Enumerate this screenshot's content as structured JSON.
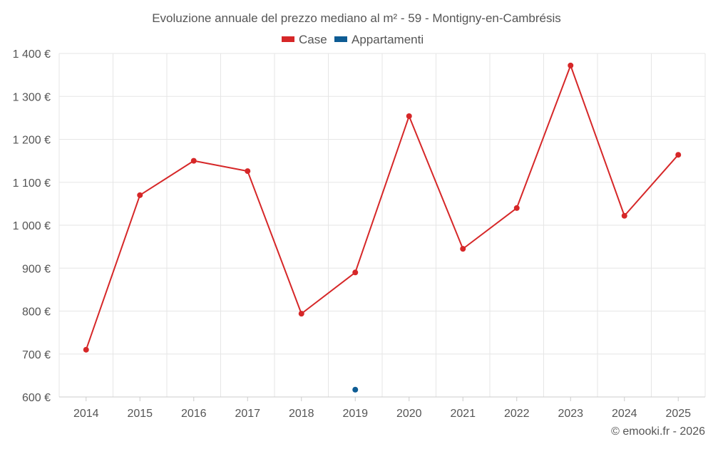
{
  "chart_data": {
    "type": "line",
    "title": "Evoluzione annuale del prezzo mediano al m² - 59 - Montigny-en-Cambrésis",
    "categories": [
      "2014",
      "2015",
      "2016",
      "2017",
      "2018",
      "2019",
      "2020",
      "2021",
      "2022",
      "2023",
      "2024",
      "2025"
    ],
    "series": [
      {
        "name": "Case",
        "color": "#d62728",
        "values": [
          710,
          1070,
          1150,
          1126,
          794,
          890,
          1254,
          945,
          1040,
          1372,
          1022,
          1164
        ]
      },
      {
        "name": "Appartamenti",
        "color": "#0e5c94",
        "values": [
          null,
          null,
          null,
          null,
          null,
          617,
          null,
          null,
          null,
          null,
          null,
          null
        ]
      }
    ],
    "y_ticks": [
      600,
      700,
      800,
      900,
      1000,
      1100,
      1200,
      1300,
      1400
    ],
    "y_tick_labels": [
      "600 €",
      "700 €",
      "800 €",
      "900 €",
      "1 000 €",
      "1 100 €",
      "1 200 €",
      "1 300 €",
      "1 400 €"
    ],
    "ylim": [
      600,
      1400
    ],
    "xlabel": "",
    "ylabel": "",
    "grid": true,
    "legend_position": "top-center"
  },
  "credit": "© emooki.fr - 2026"
}
